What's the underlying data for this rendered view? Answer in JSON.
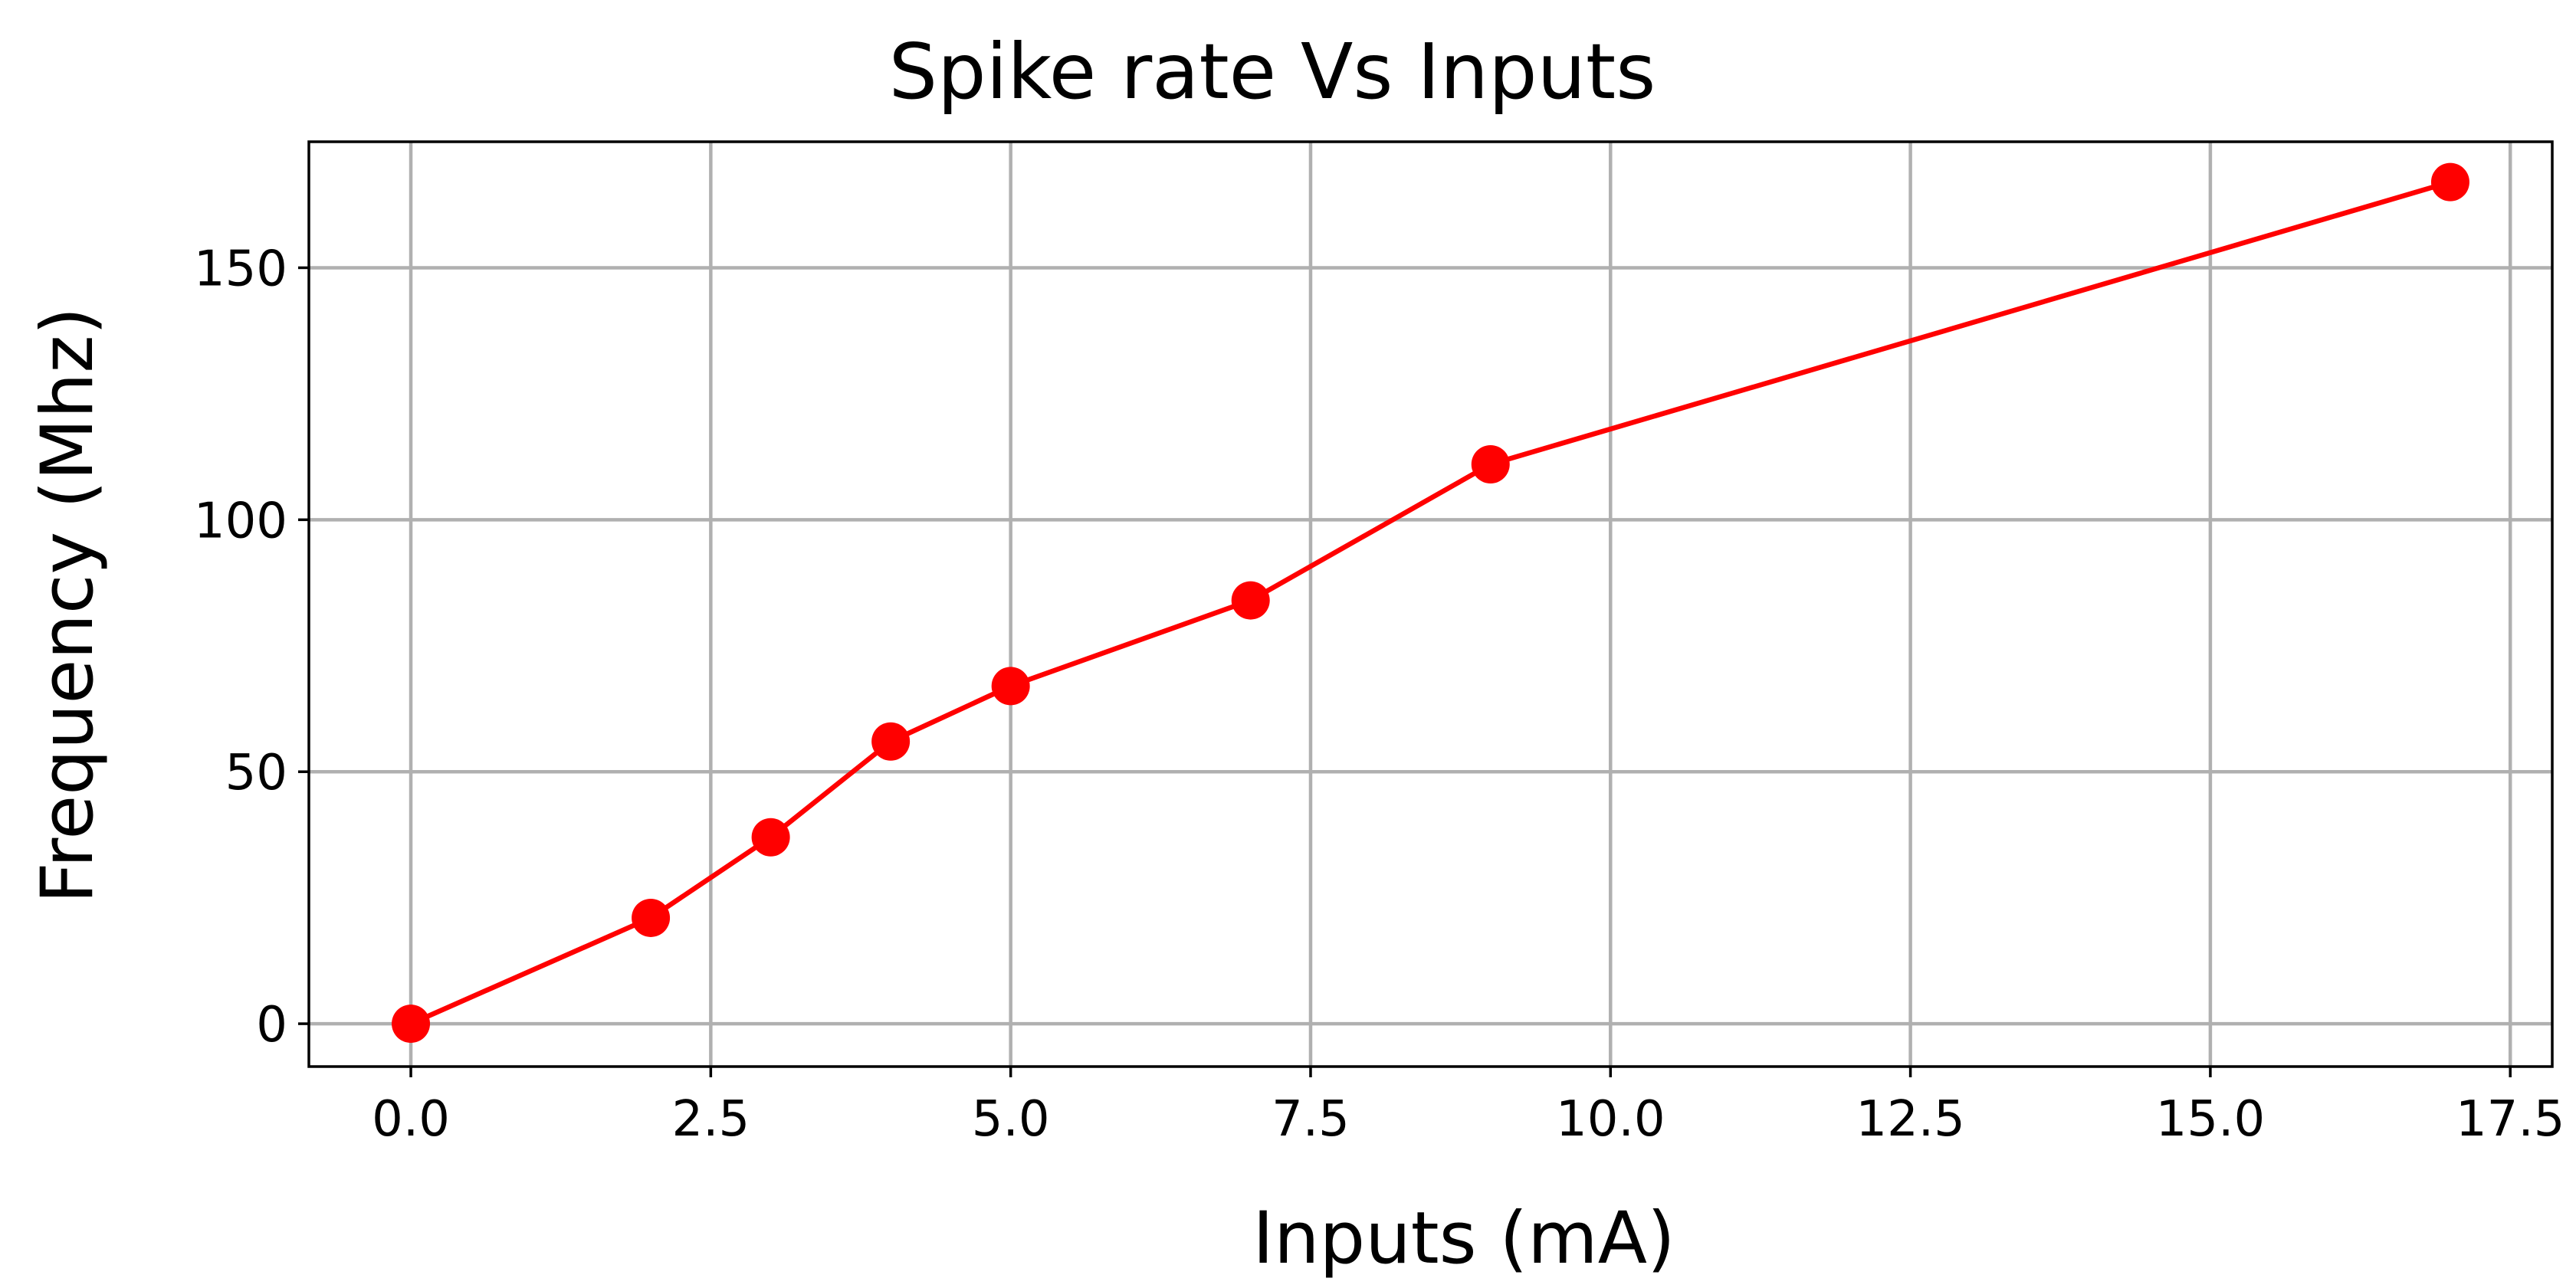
{
  "chart_data": {
    "type": "line",
    "title": "Spike rate Vs Inputs",
    "xlabel": "Inputs (mA)",
    "ylabel": "Frequency (Mhz)",
    "xlim": [
      -0.85,
      17.85
    ],
    "ylim": [
      -8.5,
      175
    ],
    "grid": true,
    "x": [
      0,
      2,
      3,
      4,
      5,
      7,
      9,
      17
    ],
    "series": [
      {
        "name": "Spike rate",
        "values": [
          0,
          21,
          37,
          56,
          67,
          84,
          111,
          167
        ],
        "color": "#ff0000",
        "marker": "circle"
      }
    ],
    "xticks": [
      0,
      2.5,
      5,
      7.5,
      10,
      12.5,
      15,
      17.5
    ],
    "xtick_labels": [
      "0.0",
      "2.5",
      "5.0",
      "7.5",
      "10.0",
      "12.5",
      "15.0",
      "17.5"
    ],
    "yticks": [
      0,
      50,
      100,
      150
    ],
    "ytick_labels": [
      "0",
      "50",
      "100",
      "150"
    ]
  }
}
